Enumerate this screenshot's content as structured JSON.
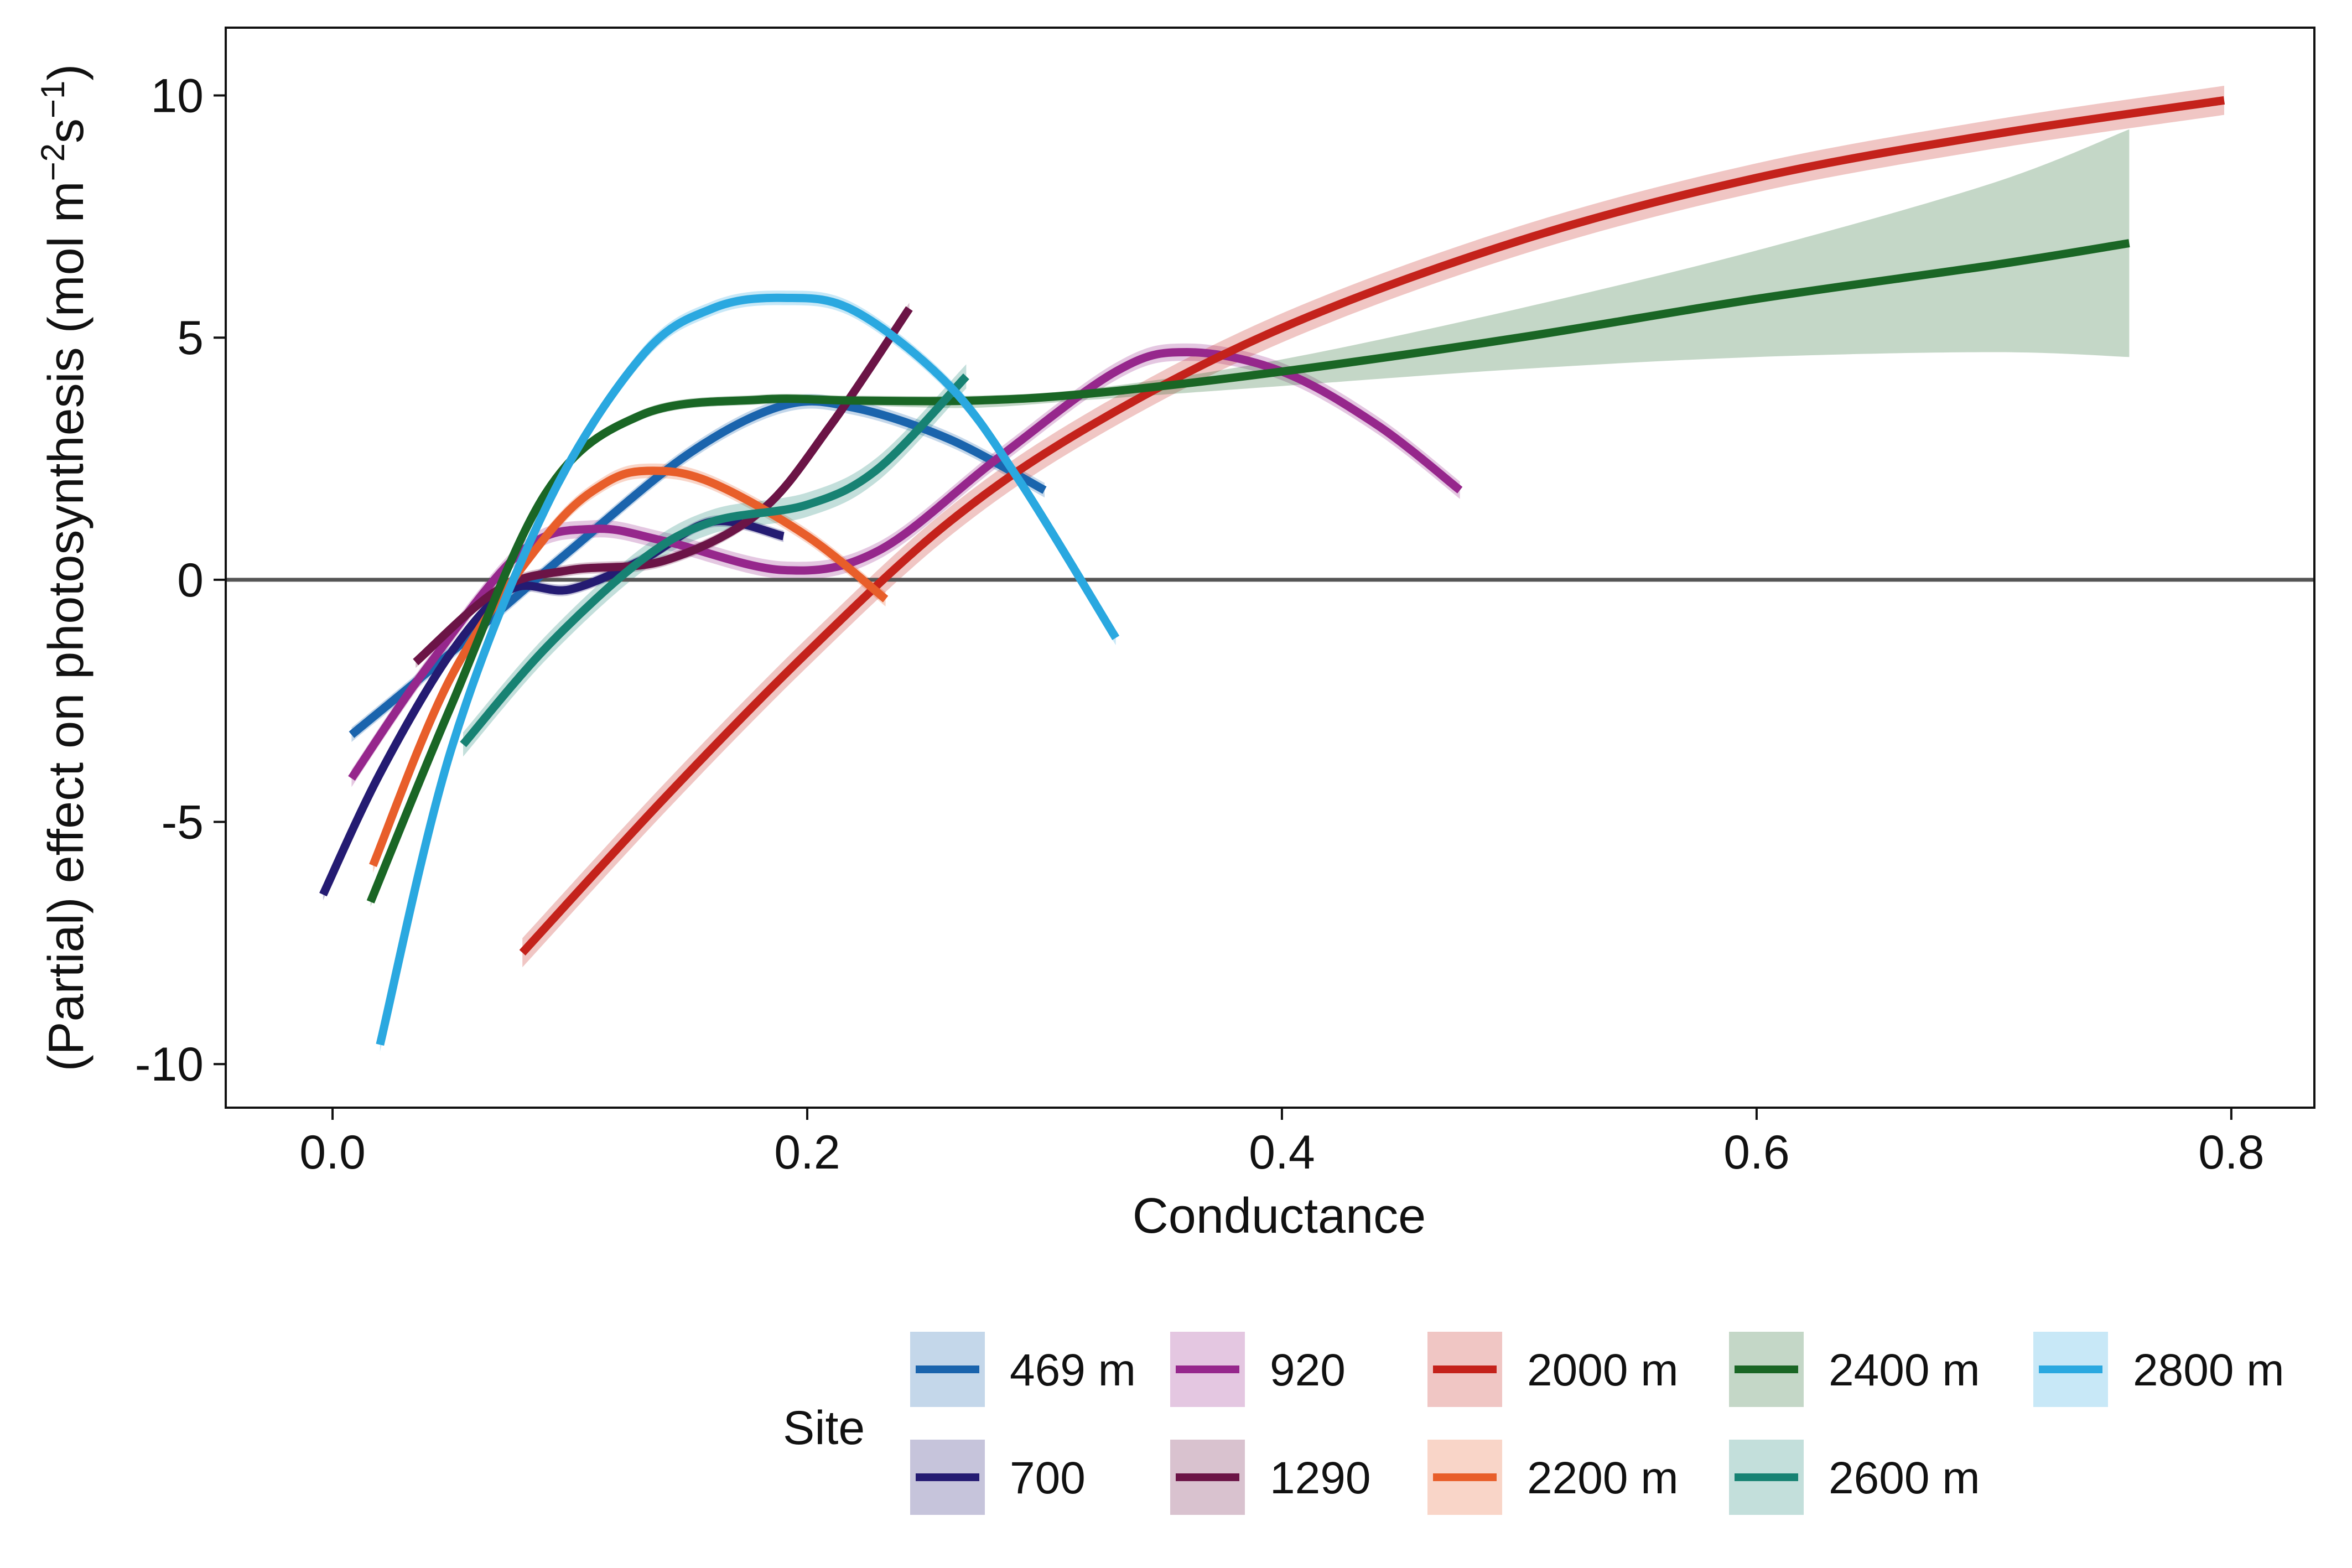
{
  "chart_data": {
    "type": "line",
    "xlabel": "Conductance",
    "ylabel": "(Partial) effect on photosynthesis (mol m",
    "ylabel_sup1": "−2",
    "ylabel_mid": "s",
    "ylabel_sup2": "−1",
    "ylabel_end": ")",
    "xlim": [
      -0.045,
      0.835
    ],
    "ylim": [
      -10.9,
      11.4
    ],
    "xticks": [
      0.0,
      0.2,
      0.4,
      0.6,
      0.8
    ],
    "xtick_labels": [
      "0.0",
      "0.2",
      "0.4",
      "0.6",
      "0.8"
    ],
    "yticks": [
      -10,
      -5,
      0,
      5,
      10
    ],
    "ytick_labels": [
      "-10",
      "-5",
      "0",
      "5",
      "10"
    ],
    "hline": 0,
    "grid": false,
    "legend": {
      "title": "Site",
      "placement": "bottom-right"
    },
    "series": [
      {
        "name": "469 m",
        "color": "#1a64ad",
        "band": 0.15,
        "points": [
          [
            0.008,
            -3.2
          ],
          [
            0.05,
            -1.5
          ],
          [
            0.1,
            0.6
          ],
          [
            0.15,
            2.6
          ],
          [
            0.19,
            3.6
          ],
          [
            0.22,
            3.55
          ],
          [
            0.26,
            2.9
          ],
          [
            0.3,
            1.85
          ]
        ]
      },
      {
        "name": "700",
        "color": "#241b72",
        "band": 0.12,
        "points": [
          [
            -0.004,
            -6.5
          ],
          [
            0.02,
            -4.0
          ],
          [
            0.05,
            -1.5
          ],
          [
            0.075,
            -0.2
          ],
          [
            0.1,
            -0.2
          ],
          [
            0.13,
            0.4
          ],
          [
            0.16,
            1.2
          ],
          [
            0.19,
            0.9
          ]
        ]
      },
      {
        "name": "920",
        "color": "#96278c",
        "band": 0.18,
        "points": [
          [
            0.008,
            -4.1
          ],
          [
            0.04,
            -1.8
          ],
          [
            0.08,
            0.6
          ],
          [
            0.11,
            1.05
          ],
          [
            0.14,
            0.8
          ],
          [
            0.19,
            0.2
          ],
          [
            0.23,
            0.6
          ],
          [
            0.28,
            2.5
          ],
          [
            0.33,
            4.3
          ],
          [
            0.36,
            4.7
          ],
          [
            0.4,
            4.3
          ],
          [
            0.44,
            3.2
          ],
          [
            0.475,
            1.85
          ]
        ]
      },
      {
        "name": "1290",
        "color": "#6b1446",
        "band": 0.12,
        "points": [
          [
            0.035,
            -1.7
          ],
          [
            0.07,
            -0.2
          ],
          [
            0.1,
            0.2
          ],
          [
            0.14,
            0.4
          ],
          [
            0.18,
            1.4
          ],
          [
            0.21,
            3.2
          ],
          [
            0.243,
            5.6
          ]
        ]
      },
      {
        "name": "2000 m",
        "color": "#c4221b",
        "band": 0.3,
        "points": [
          [
            0.08,
            -7.7
          ],
          [
            0.14,
            -4.5
          ],
          [
            0.2,
            -1.5
          ],
          [
            0.26,
            1.2
          ],
          [
            0.32,
            3.2
          ],
          [
            0.4,
            5.2
          ],
          [
            0.5,
            7.0
          ],
          [
            0.6,
            8.3
          ],
          [
            0.7,
            9.2
          ],
          [
            0.797,
            9.9
          ]
        ]
      },
      {
        "name": "2200 m",
        "color": "#e85e2a",
        "band": 0.15,
        "points": [
          [
            0.017,
            -5.9
          ],
          [
            0.05,
            -2.0
          ],
          [
            0.09,
            0.9
          ],
          [
            0.115,
            2.0
          ],
          [
            0.135,
            2.25
          ],
          [
            0.16,
            2.0
          ],
          [
            0.2,
            0.9
          ],
          [
            0.233,
            -0.4
          ]
        ]
      },
      {
        "name": "2400 m",
        "color": "#1a6625",
        "band": 0.15,
        "bandTop": [
          [
            0.016,
            -6.55
          ],
          [
            0.05,
            -2.5
          ],
          [
            0.09,
            1.9
          ],
          [
            0.13,
            3.5
          ],
          [
            0.18,
            3.82
          ],
          [
            0.22,
            3.8
          ],
          [
            0.27,
            3.8
          ],
          [
            0.32,
            3.95
          ],
          [
            0.4,
            4.55
          ],
          [
            0.5,
            5.6
          ],
          [
            0.6,
            6.8
          ],
          [
            0.7,
            8.2
          ],
          [
            0.757,
            9.3
          ]
        ],
        "bandBottom": [
          [
            0.016,
            -6.75
          ],
          [
            0.05,
            -2.7
          ],
          [
            0.09,
            1.7
          ],
          [
            0.13,
            3.3
          ],
          [
            0.18,
            3.62
          ],
          [
            0.22,
            3.6
          ],
          [
            0.27,
            3.55
          ],
          [
            0.32,
            3.72
          ],
          [
            0.4,
            4.0
          ],
          [
            0.5,
            4.35
          ],
          [
            0.6,
            4.6
          ],
          [
            0.7,
            4.7
          ],
          [
            0.757,
            4.6
          ]
        ],
        "points": [
          [
            0.016,
            -6.65
          ],
          [
            0.05,
            -2.6
          ],
          [
            0.09,
            1.8
          ],
          [
            0.13,
            3.4
          ],
          [
            0.18,
            3.72
          ],
          [
            0.22,
            3.7
          ],
          [
            0.27,
            3.7
          ],
          [
            0.32,
            3.85
          ],
          [
            0.4,
            4.3
          ],
          [
            0.5,
            5.0
          ],
          [
            0.6,
            5.8
          ],
          [
            0.7,
            6.5
          ],
          [
            0.757,
            6.95
          ]
        ]
      },
      {
        "name": "2600 m",
        "color": "#178273",
        "band": 0.25,
        "points": [
          [
            0.055,
            -3.4
          ],
          [
            0.09,
            -1.4
          ],
          [
            0.13,
            0.4
          ],
          [
            0.16,
            1.2
          ],
          [
            0.2,
            1.55
          ],
          [
            0.23,
            2.3
          ],
          [
            0.267,
            4.2
          ]
        ]
      },
      {
        "name": "2800 m",
        "color": "#2aa8e0",
        "band": 0.15,
        "points": [
          [
            0.02,
            -9.6
          ],
          [
            0.05,
            -3.5
          ],
          [
            0.09,
            1.5
          ],
          [
            0.13,
            4.6
          ],
          [
            0.16,
            5.6
          ],
          [
            0.19,
            5.82
          ],
          [
            0.22,
            5.55
          ],
          [
            0.26,
            4.0
          ],
          [
            0.29,
            2.0
          ],
          [
            0.33,
            -1.2
          ]
        ]
      }
    ]
  }
}
